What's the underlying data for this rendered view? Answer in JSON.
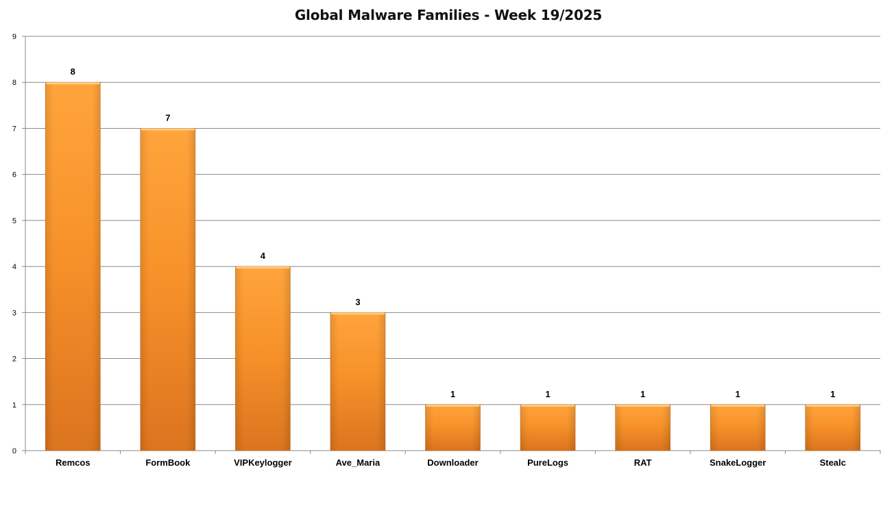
{
  "chart_data": {
    "type": "bar",
    "title": "Global Malware Families - Week 19/2025",
    "xlabel": "",
    "ylabel": "",
    "categories": [
      "Remcos",
      "FormBook",
      "VIPKeylogger",
      "Ave_Maria",
      "Downloader",
      "PureLogs",
      "RAT",
      "SnakeLogger",
      "Stealc"
    ],
    "values": [
      8,
      7,
      4,
      3,
      1,
      1,
      1,
      1,
      1
    ],
    "ylim": [
      0,
      9
    ],
    "yticks": [
      "0",
      "1",
      "2",
      "3",
      "4",
      "5",
      "6",
      "7",
      "8",
      "9"
    ],
    "data_labels": [
      "8",
      "7",
      "4",
      "3",
      "1",
      "1",
      "1",
      "1",
      "1"
    ],
    "grid": true,
    "legend": "none",
    "bar_color": "#f7922a",
    "bar_color_light": "#ffa43c",
    "bar_color_dark": "#db741f",
    "gridline_color": "#888888"
  }
}
